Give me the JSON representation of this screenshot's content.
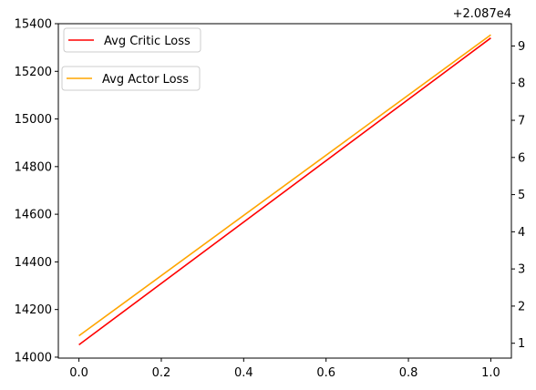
{
  "chart_data": {
    "type": "line",
    "x": [
      0,
      1
    ],
    "xlim": [
      -0.05,
      1.05
    ],
    "xticks": [
      0.0,
      0.2,
      0.4,
      0.6,
      0.8,
      1.0
    ],
    "xtick_labels": [
      "0.0",
      "0.2",
      "0.4",
      "0.6",
      "0.8",
      "1.0"
    ],
    "left_axis": {
      "ylim": [
        13996,
        15400
      ],
      "yticks": [
        14000,
        14200,
        14400,
        14600,
        14800,
        15000,
        15200,
        15400
      ],
      "ytick_labels": [
        "14000",
        "14200",
        "14400",
        "14600",
        "14800",
        "15000",
        "15200",
        "15400"
      ]
    },
    "right_axis": {
      "offset_label": "+2.087e4",
      "ylim": [
        0.6,
        9.6
      ],
      "yticks": [
        1,
        2,
        3,
        4,
        5,
        6,
        7,
        8,
        9
      ],
      "ytick_labels": [
        "1",
        "2",
        "3",
        "4",
        "5",
        "6",
        "7",
        "8",
        "9"
      ]
    },
    "series": [
      {
        "name": "Avg Critic Loss",
        "axis": "left",
        "color": "#ff0000",
        "values": [
          14052,
          15340
        ]
      },
      {
        "name": "Avg Actor Loss",
        "axis": "right",
        "color": "#ffa500",
        "values": [
          1.2,
          9.3
        ]
      }
    ],
    "legend": [
      {
        "label": "Avg Critic Loss",
        "color": "#ff0000",
        "placement": "top-left"
      },
      {
        "label": "Avg Actor Loss",
        "color": "#ffa500",
        "placement": "upper-left"
      }
    ],
    "grid": false
  }
}
